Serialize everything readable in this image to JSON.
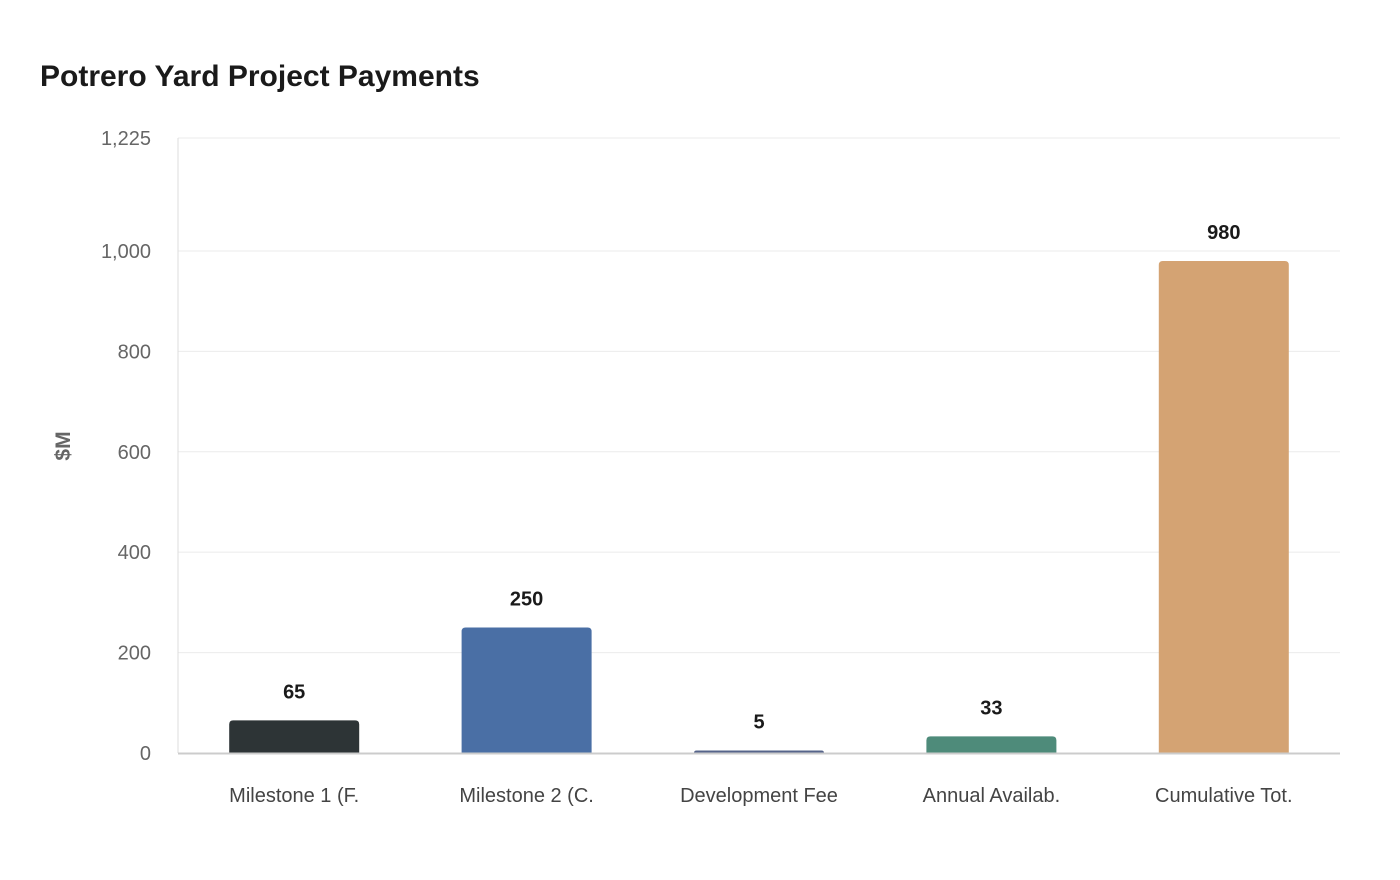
{
  "chart_data": {
    "type": "bar",
    "title": "Potrero Yard Project Payments",
    "xlabel": "",
    "ylabel": "$M",
    "ylim": [
      0,
      1225
    ],
    "yticks": [
      0,
      200,
      400,
      600,
      800,
      1000,
      1225
    ],
    "ytick_labels": [
      "0",
      "200",
      "400",
      "600",
      "800",
      "1,000",
      "1,225"
    ],
    "grid": true,
    "categories": [
      "Milestone 1 (F.",
      "Milestone 2 (C.",
      "Development Fee",
      "Annual Availab.",
      "Cumulative Tot."
    ],
    "values": [
      65,
      250,
      5,
      33,
      980
    ],
    "data_labels": [
      "65",
      "250",
      "5",
      "33",
      "980"
    ],
    "colors": [
      "#2d3436",
      "#4a6fa5",
      "#56648a",
      "#4e8b7a",
      "#d4a373"
    ]
  }
}
